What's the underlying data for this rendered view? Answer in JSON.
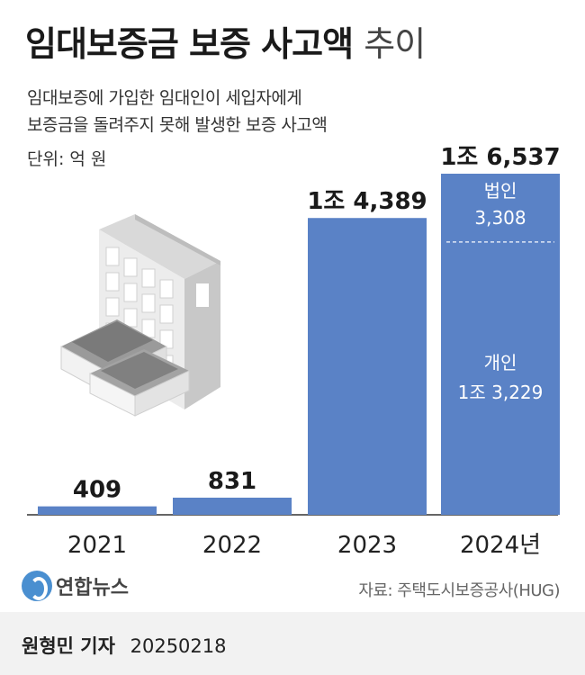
{
  "title": {
    "bold": "임대보증금 보증 사고액",
    "thin": "추이"
  },
  "subtitle": [
    "임대보증에 가입한 임대인이 세입자에게",
    "보증금을 돌려주지 못해 발생한 보증 사고액"
  ],
  "unit": "단위: 억 원",
  "source": "자료: 주택도시보증공사(HUG)",
  "logo": "연합뉴스",
  "reporter": {
    "name": "원형민 기자",
    "date": "20250218"
  },
  "chart_data": {
    "type": "bar",
    "categories": [
      "2021",
      "2022",
      "2023",
      "2024년"
    ],
    "values": [
      409,
      831,
      14389,
      16537
    ],
    "value_labels": [
      "409",
      "831",
      "1조 4,389",
      "1조 6,537"
    ],
    "stacked_2024": [
      {
        "name": "법인",
        "value": 3308,
        "label": "3,308"
      },
      {
        "name": "개인",
        "value": 13229,
        "label": "1조 3,229"
      }
    ],
    "bar_color": "#5a82c6",
    "ylim": [
      0,
      16537
    ]
  }
}
